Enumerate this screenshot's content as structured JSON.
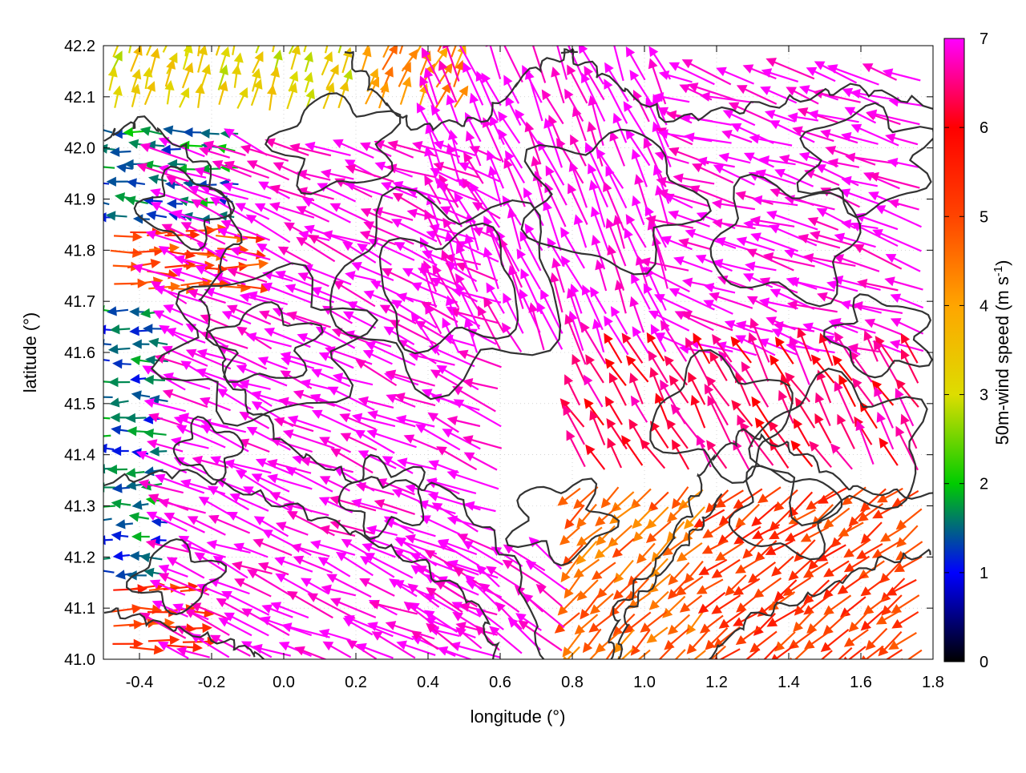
{
  "chart_data": {
    "type": "vector-field",
    "xlabel": "longitude (°)",
    "ylabel": "latitude (°)",
    "xlim": [
      -0.5,
      1.8
    ],
    "ylim": [
      41.0,
      42.2
    ],
    "xticks": [
      "-0.4",
      "-0.2",
      "0.0",
      "0.2",
      "0.4",
      "0.6",
      "0.8",
      "1.0",
      "1.2",
      "1.4",
      "1.6",
      "1.8"
    ],
    "yticks": [
      "41.0",
      "41.1",
      "41.2",
      "41.3",
      "41.4",
      "41.5",
      "41.6",
      "41.7",
      "41.8",
      "41.9",
      "42.0",
      "42.1",
      "42.2"
    ],
    "grid": "dotted",
    "colorbar": {
      "label": "50m-wind speed (m s",
      "label_sup": "-1",
      "label_end": ")",
      "ticks": [
        "0",
        "1",
        "2",
        "3",
        "4",
        "5",
        "6",
        "7"
      ],
      "range": [
        0,
        7
      ],
      "colors": [
        "#000000",
        "#0000ff",
        "#00cc00",
        "#dddd00",
        "#ffa500",
        "#ff4400",
        "#ff0000",
        "#ff00ff"
      ]
    },
    "vector_regions": [
      {
        "lon": [
          -0.5,
          -0.25
        ],
        "lat": [
          41.0,
          41.15
        ],
        "u": 1,
        "v": 0,
        "speed": 5.2
      },
      {
        "lon": [
          -0.5,
          -0.3
        ],
        "lat": [
          41.15,
          41.7
        ],
        "u": -1,
        "v": 0,
        "speed": 1.5
      },
      {
        "lon": [
          -0.5,
          -0.1
        ],
        "lat": [
          41.7,
          41.85
        ],
        "u": 1,
        "v": 0,
        "speed": 5.0
      },
      {
        "lon": [
          -0.5,
          -0.1
        ],
        "lat": [
          41.85,
          42.05
        ],
        "u": -1,
        "v": 0.1,
        "speed": 1.6
      },
      {
        "lon": [
          -0.5,
          0.2
        ],
        "lat": [
          42.05,
          42.2
        ],
        "u": 0.3,
        "v": 1,
        "speed": 3.2
      },
      {
        "lon": [
          0.2,
          0.5
        ],
        "lat": [
          42.05,
          42.2
        ],
        "u": 0.5,
        "v": 1,
        "speed": 4.3
      },
      {
        "lon": [
          -0.3,
          0.6
        ],
        "lat": [
          41.0,
          42.0
        ],
        "u": -0.92,
        "v": 0.38,
        "speed": 7.0
      },
      {
        "lon": [
          0.4,
          1.1
        ],
        "lat": [
          41.6,
          42.15
        ],
        "u": -0.4,
        "v": 0.9,
        "speed": 7.0
      },
      {
        "lon": [
          1.1,
          1.8
        ],
        "lat": [
          41.6,
          42.15
        ],
        "u": -0.95,
        "v": 0.3,
        "speed": 7.0
      },
      {
        "lon": [
          0.8,
          1.8
        ],
        "lat": [
          41.35,
          41.6
        ],
        "u": -0.5,
        "v": 0.85,
        "speed": 6.4
      },
      {
        "lon": [
          0.8,
          1.2
        ],
        "lat": [
          41.0,
          41.35
        ],
        "u": -0.7,
        "v": -0.7,
        "speed": 4.6
      },
      {
        "lon": [
          1.2,
          1.8
        ],
        "lat": [
          41.0,
          41.35
        ],
        "u": -0.8,
        "v": -0.6,
        "speed": 5.2
      },
      {
        "lon": [
          0.4,
          0.8
        ],
        "lat": [
          41.0,
          41.2
        ],
        "u": -0.8,
        "v": 0.6,
        "speed": 7.0
      }
    ]
  }
}
